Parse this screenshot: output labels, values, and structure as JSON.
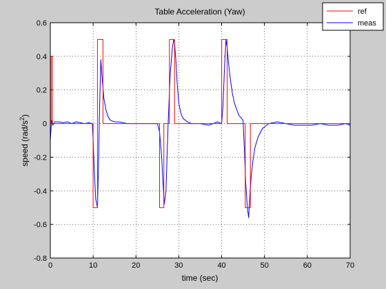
{
  "chart_data": {
    "type": "line",
    "title": "Table Acceleration (Yaw)",
    "xlabel": "time (sec)",
    "ylabel_prefix": "speed (rad/s",
    "ylabel_sup": "2",
    "ylabel_suffix": ")",
    "xlim": [
      0,
      70
    ],
    "ylim": [
      -0.8,
      0.6
    ],
    "xticks": [
      0,
      10,
      20,
      30,
      40,
      50,
      60,
      70
    ],
    "yticks": [
      -0.8,
      -0.6,
      -0.4,
      -0.2,
      0,
      0.2,
      0.4,
      0.6
    ],
    "grid": true,
    "legend_position": "top-right",
    "series": [
      {
        "name": "ref",
        "color": "#ff0000",
        "x": [
          0,
          0.2,
          0.2,
          0.5,
          0.5,
          10,
          10,
          11,
          11,
          12.3,
          12.3,
          25.5,
          25.5,
          26.5,
          26.5,
          27.8,
          27.8,
          29,
          29,
          40,
          40,
          41.3,
          41.3,
          45.5,
          45.5,
          46.7,
          46.7,
          70
        ],
        "y": [
          0,
          0,
          0.4,
          0.4,
          0,
          0,
          -0.5,
          -0.5,
          0.5,
          0.5,
          0,
          0,
          -0.5,
          -0.5,
          0,
          0,
          0.5,
          0.5,
          0,
          0,
          0.5,
          0.5,
          0,
          0,
          -0.5,
          -0.5,
          0,
          0
        ]
      },
      {
        "name": "meas",
        "color": "#0000ff",
        "x": [
          0,
          0.3,
          0.6,
          1,
          2,
          3,
          4,
          5,
          6,
          7,
          8,
          9,
          9.8,
          10,
          10.3,
          10.6,
          11,
          11.2,
          11.5,
          11.8,
          12,
          12.5,
          13,
          13.5,
          14,
          15,
          16,
          18,
          20,
          22,
          24,
          25,
          25.5,
          26,
          26.3,
          26.6,
          27,
          27.5,
          28,
          28.5,
          28.8,
          29,
          29.3,
          29.6,
          30,
          30.5,
          31,
          32,
          33,
          35,
          37,
          38,
          39,
          40,
          40.3,
          40.7,
          41,
          41.3,
          41.6,
          42,
          42.5,
          43,
          44,
          45,
          45.3,
          45.6,
          46,
          46.3,
          46.6,
          46.9,
          47.3,
          47.8,
          48.5,
          49.5,
          51,
          53,
          55,
          57,
          59,
          61,
          63,
          65,
          67,
          69,
          70
        ],
        "y": [
          -0.1,
          0.02,
          -0.01,
          0.01,
          0.01,
          0.005,
          0.01,
          0.0,
          0.01,
          0.005,
          0.0,
          0.005,
          0.0,
          -0.1,
          -0.3,
          -0.45,
          -0.5,
          -0.3,
          0.1,
          0.38,
          0.3,
          0.15,
          0.08,
          0.04,
          0.02,
          0.01,
          0.01,
          0.0,
          0.0,
          0.0,
          0.0,
          0.0,
          -0.05,
          -0.2,
          -0.35,
          -0.48,
          -0.4,
          0.0,
          0.3,
          0.45,
          0.5,
          0.48,
          0.38,
          0.25,
          0.12,
          0.06,
          0.03,
          0.01,
          0.0,
          0.0,
          -0.01,
          0.0,
          0.01,
          0.0,
          0.1,
          0.35,
          0.5,
          0.45,
          0.36,
          0.27,
          0.18,
          0.12,
          0.05,
          0.02,
          -0.15,
          -0.35,
          -0.5,
          -0.56,
          -0.42,
          -0.32,
          -0.22,
          -0.14,
          -0.08,
          -0.03,
          0.0,
          0.01,
          0.0,
          -0.01,
          -0.01,
          -0.01,
          0.0,
          -0.01,
          -0.01,
          0.0,
          -0.01
        ]
      }
    ]
  }
}
